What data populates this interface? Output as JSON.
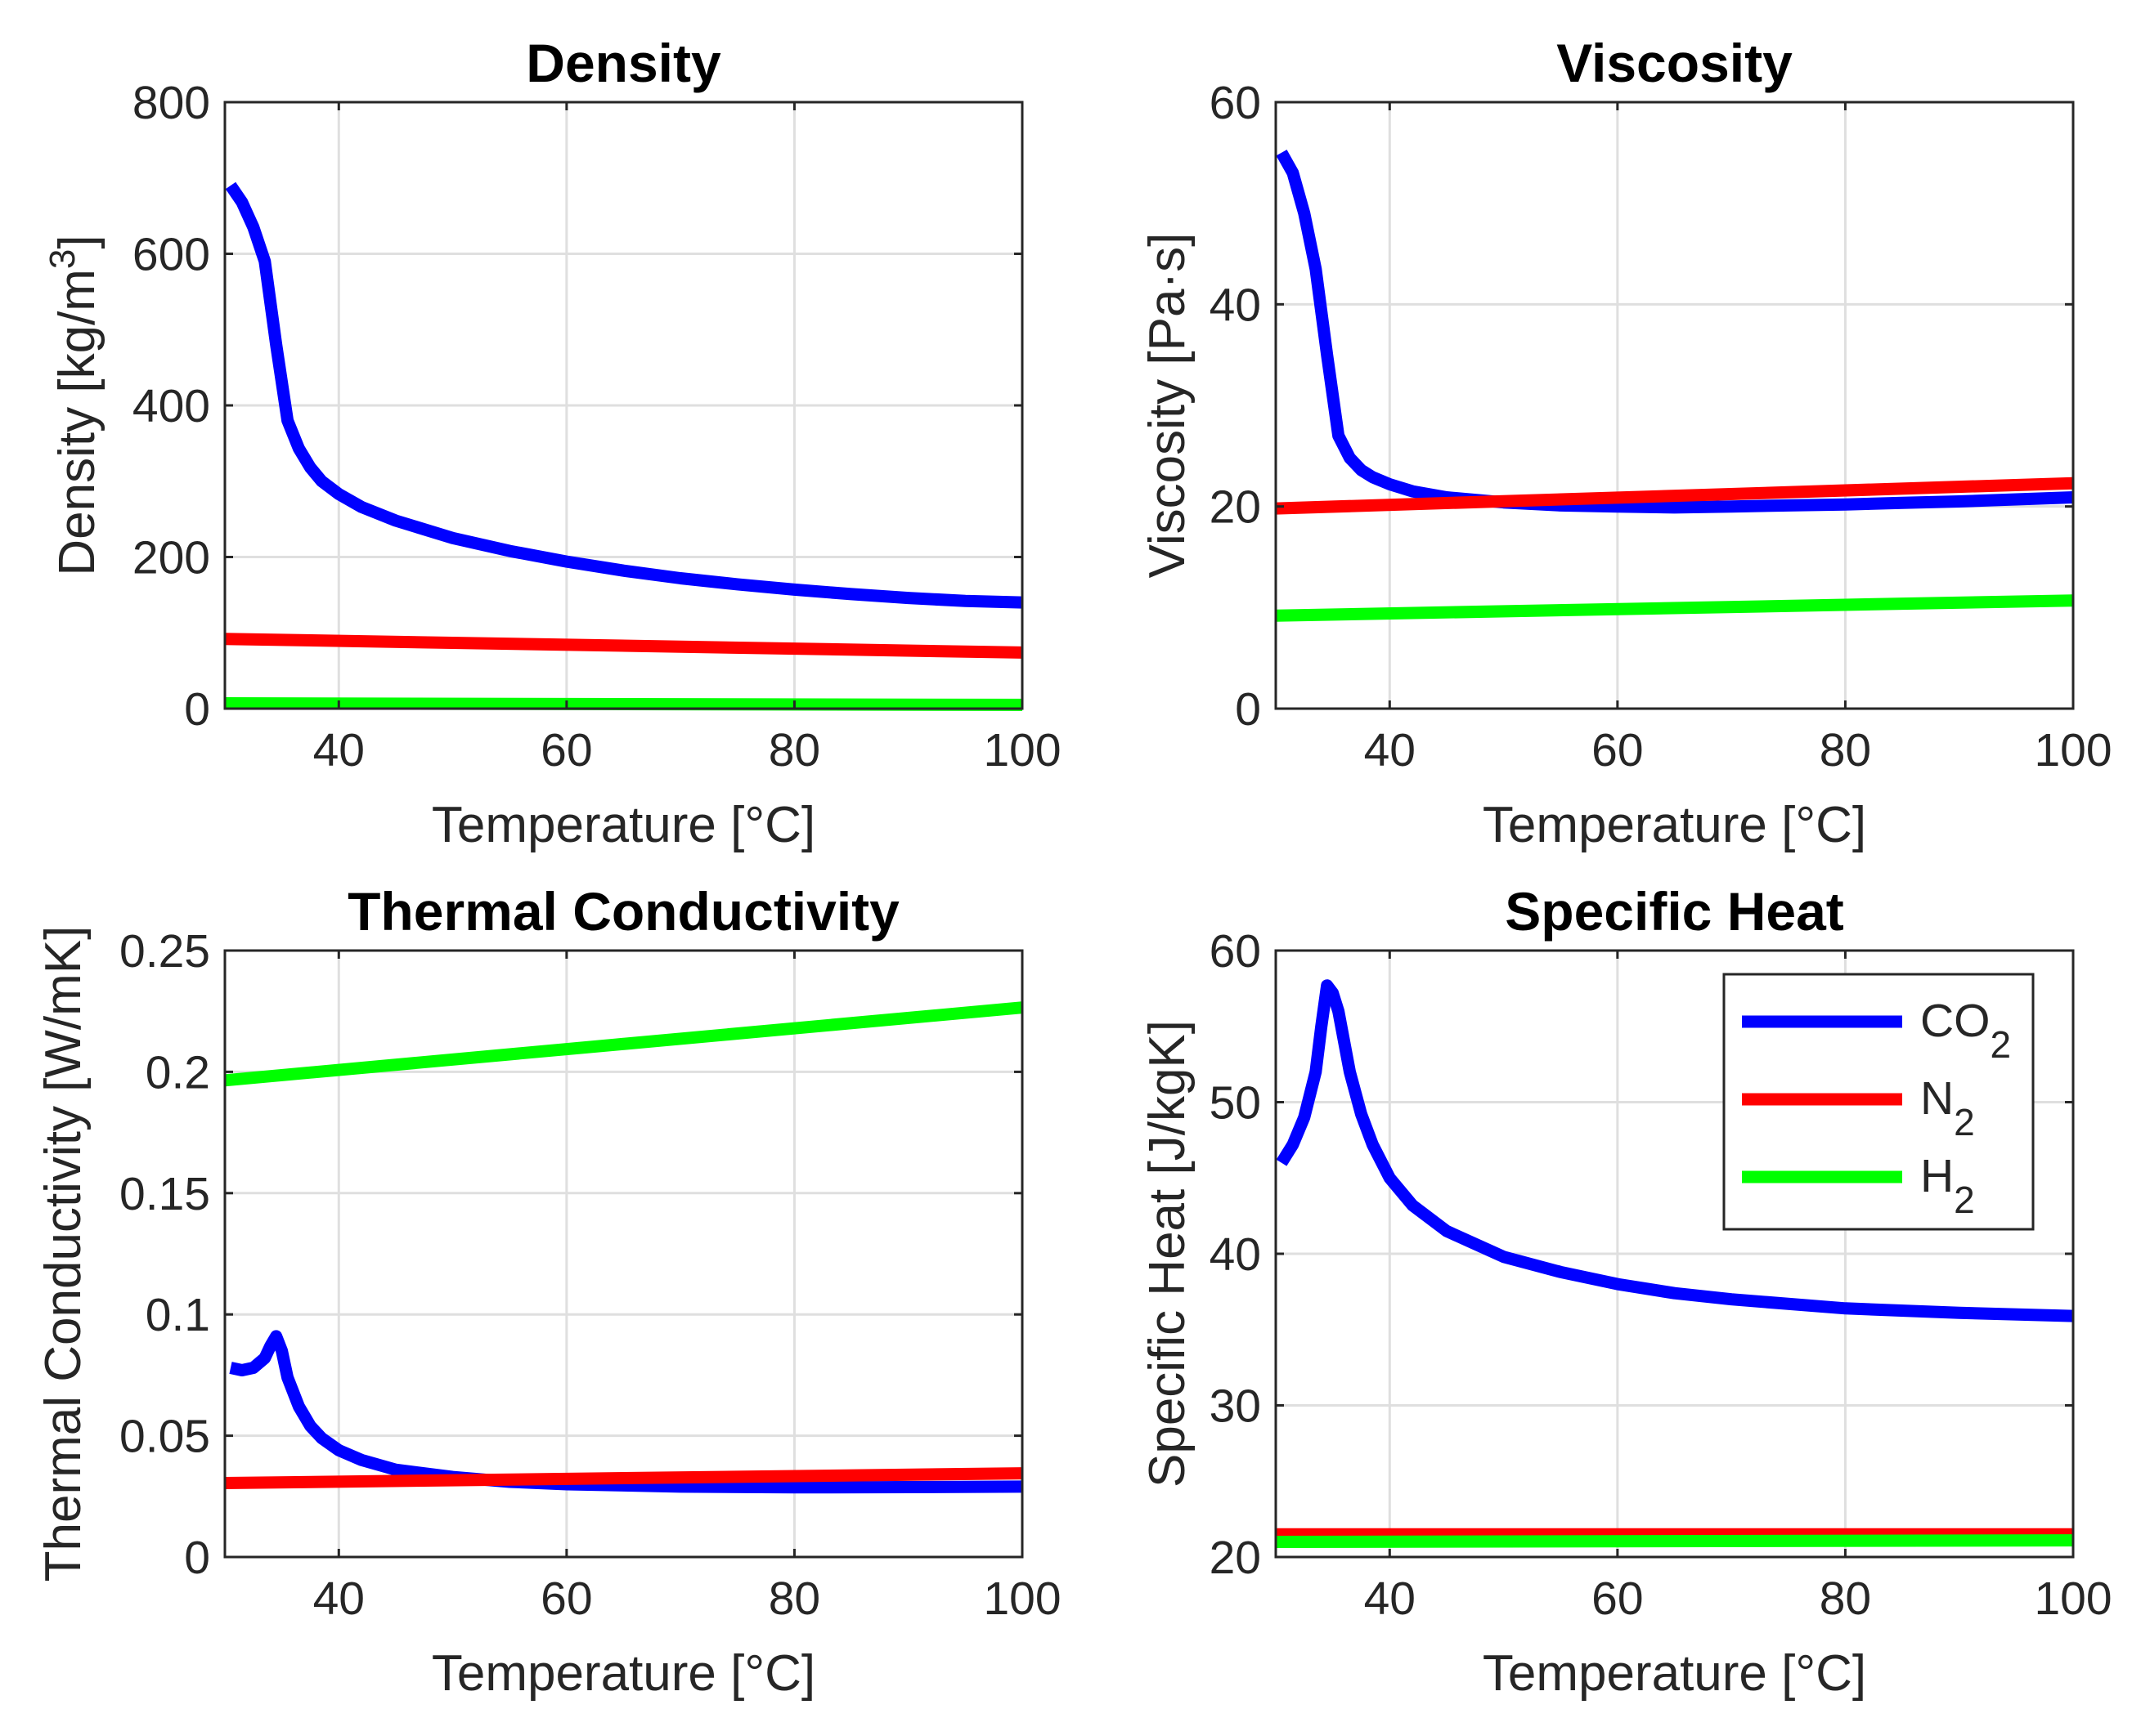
{
  "chart_data": [
    {
      "type": "line",
      "title": "Density",
      "xlabel": "Temperature [°C]",
      "ylabel": "Density [kg/m³]",
      "xlim": [
        30,
        100
      ],
      "ylim": [
        0,
        800
      ],
      "xticks": [
        40,
        60,
        80,
        100
      ],
      "xtick_labels": [
        "40",
        "60",
        "80",
        "100"
      ],
      "yticks": [
        0,
        200,
        400,
        600,
        800
      ],
      "ytick_labels": [
        "0",
        "200",
        "400",
        "600",
        "800"
      ],
      "grid": true,
      "series": [
        {
          "name": "CO₂",
          "color": "#0000ff",
          "x": [
            30.5,
            31.5,
            32.5,
            33.5,
            34.5,
            35.5,
            36.5,
            37.5,
            38.5,
            40,
            42,
            45,
            50,
            55,
            60,
            65,
            70,
            75,
            80,
            85,
            90,
            95,
            100
          ],
          "y": [
            690,
            668,
            635,
            590,
            480,
            380,
            343,
            318,
            300,
            283,
            266,
            248,
            225,
            208,
            194,
            182,
            172,
            164,
            157,
            151,
            146,
            142,
            140
          ]
        },
        {
          "name": "N₂",
          "color": "#ff0000",
          "x": [
            30,
            100
          ],
          "y": [
            92,
            74
          ]
        },
        {
          "name": "H₂",
          "color": "#00ff00",
          "x": [
            30,
            100
          ],
          "y": [
            7,
            5
          ]
        }
      ]
    },
    {
      "type": "line",
      "title": "Viscosity",
      "xlabel": "Temperature [°C]",
      "ylabel": "Viscosity [Pa·s]",
      "xlim": [
        30,
        100
      ],
      "ylim": [
        0,
        60
      ],
      "xticks": [
        40,
        60,
        80,
        100
      ],
      "xtick_labels": [
        "40",
        "60",
        "80",
        "100"
      ],
      "yticks": [
        0,
        20,
        40,
        60
      ],
      "ytick_labels": [
        "0",
        "20",
        "40",
        "60"
      ],
      "grid": true,
      "series": [
        {
          "name": "CO₂",
          "color": "#0000ff",
          "x": [
            30.5,
            31.5,
            32.5,
            33.5,
            34.5,
            35.5,
            36.5,
            37.5,
            38.5,
            40,
            42,
            45,
            50,
            55,
            60,
            65,
            70,
            75,
            80,
            85,
            90,
            95,
            100
          ],
          "y": [
            55,
            53,
            49,
            43.5,
            35,
            27,
            24.8,
            23.6,
            22.9,
            22.2,
            21.5,
            20.9,
            20.4,
            20.1,
            20.0,
            19.9,
            20.0,
            20.1,
            20.2,
            20.35,
            20.5,
            20.7,
            20.9
          ]
        },
        {
          "name": "N₂",
          "color": "#ff0000",
          "x": [
            30,
            100
          ],
          "y": [
            19.8,
            22.3
          ]
        },
        {
          "name": "H₂",
          "color": "#00ff00",
          "x": [
            30,
            100
          ],
          "y": [
            9.2,
            10.7
          ]
        }
      ]
    },
    {
      "type": "line",
      "title": "Thermal Conductivity",
      "xlabel": "Temperature [°C]",
      "ylabel": "Thermal Conductivity [W/mK]",
      "xlim": [
        30,
        100
      ],
      "ylim": [
        0,
        0.25
      ],
      "xticks": [
        40,
        60,
        80,
        100
      ],
      "xtick_labels": [
        "40",
        "60",
        "80",
        "100"
      ],
      "yticks": [
        0,
        0.05,
        0.1,
        0.15,
        0.2,
        0.25
      ],
      "ytick_labels": [
        "0",
        "0.05",
        "0.1",
        "0.15",
        "0.2",
        "0.25"
      ],
      "grid": true,
      "series": [
        {
          "name": "CO₂",
          "color": "#0000ff",
          "x": [
            30.5,
            31.5,
            32.5,
            33.5,
            34,
            34.5,
            35,
            35.5,
            36.5,
            37.5,
            38.5,
            40,
            42,
            45,
            50,
            55,
            60,
            65,
            70,
            80,
            90,
            100
          ],
          "y": [
            0.078,
            0.077,
            0.078,
            0.082,
            0.087,
            0.091,
            0.085,
            0.074,
            0.062,
            0.054,
            0.049,
            0.044,
            0.04,
            0.036,
            0.033,
            0.031,
            0.03,
            0.0295,
            0.029,
            0.0287,
            0.0288,
            0.029
          ]
        },
        {
          "name": "N₂",
          "color": "#ff0000",
          "x": [
            30,
            100
          ],
          "y": [
            0.0305,
            0.0345
          ]
        },
        {
          "name": "H₂",
          "color": "#00ff00",
          "x": [
            30,
            100
          ],
          "y": [
            0.1965,
            0.2265
          ]
        }
      ]
    },
    {
      "type": "line",
      "title": "Specific Heat",
      "xlabel": "Temperature [°C]",
      "ylabel": "Specific Heat [J/kgK]",
      "xlim": [
        30,
        100
      ],
      "ylim": [
        20,
        60
      ],
      "xticks": [
        40,
        60,
        80,
        100
      ],
      "xtick_labels": [
        "40",
        "60",
        "80",
        "100"
      ],
      "yticks": [
        20,
        30,
        40,
        50,
        60
      ],
      "ytick_labels": [
        "20",
        "30",
        "40",
        "50",
        "60"
      ],
      "grid": true,
      "legend": "top-right",
      "series": [
        {
          "name": "CO₂",
          "color": "#0000ff",
          "x": [
            30.5,
            31.5,
            32.5,
            33.5,
            34,
            34.5,
            35,
            35.5,
            36.5,
            37.5,
            38.5,
            40,
            42,
            45,
            50,
            55,
            60,
            65,
            70,
            80,
            90,
            100
          ],
          "y": [
            46,
            47.2,
            49,
            52,
            55,
            57.7,
            57.2,
            56,
            52,
            49.2,
            47.2,
            45,
            43.2,
            41.5,
            39.8,
            38.8,
            38.0,
            37.4,
            37.0,
            36.4,
            36.1,
            35.9
          ]
        },
        {
          "name": "N₂",
          "color": "#ff0000",
          "x": [
            30,
            100
          ],
          "y": [
            21.5,
            21.5
          ]
        },
        {
          "name": "H₂",
          "color": "#00ff00",
          "x": [
            30,
            100
          ],
          "y": [
            21.0,
            21.1
          ]
        }
      ]
    }
  ],
  "legend": {
    "entries": [
      {
        "base": "CO",
        "sub": "2",
        "color": "#0000ff"
      },
      {
        "base": "N",
        "sub": "2",
        "color": "#ff0000"
      },
      {
        "base": "H",
        "sub": "2",
        "color": "#00ff00"
      }
    ]
  }
}
